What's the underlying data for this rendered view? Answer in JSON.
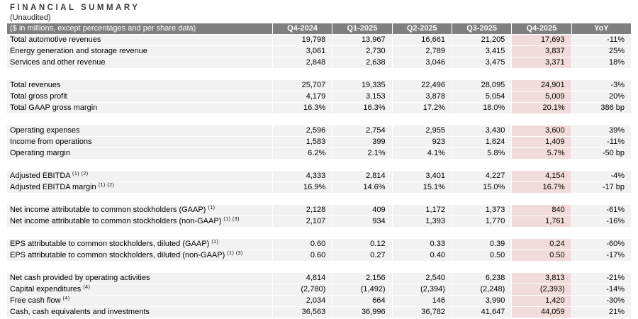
{
  "title": "FINANCIAL SUMMARY",
  "subtitle": "(Unaudited)",
  "colors": {
    "header_bg": "#7f7f7f",
    "header_text": "#ffffff",
    "row_bg": "#f2f2f2",
    "highlight_bg": "#f2dcdb",
    "spacer_bg": "#ffffff"
  },
  "table": {
    "label_note": "($ in millions, except percentages and per share data)",
    "columns": [
      "Q4-2024",
      "Q1-2025",
      "Q2-2025",
      "Q3-2025",
      "Q4-2025",
      "YoY"
    ],
    "highlight_column_index": 4,
    "highlight_column": "Q4-2025",
    "sections": [
      {
        "rows": [
          {
            "label": "Total automotive revenues",
            "sup": "",
            "values": [
              "19,798",
              "13,967",
              "16,661",
              "21,205",
              "17,693",
              "-11%"
            ]
          },
          {
            "label": "Energy generation and storage revenue",
            "sup": "",
            "values": [
              "3,061",
              "2,730",
              "2,789",
              "3,415",
              "3,837",
              "25%"
            ]
          },
          {
            "label": "Services and other revenue",
            "sup": "",
            "values": [
              "2,848",
              "2,638",
              "3,046",
              "3,475",
              "3,371",
              "18%"
            ]
          }
        ]
      },
      {
        "rows": [
          {
            "label": "Total revenues",
            "sup": "",
            "values": [
              "25,707",
              "19,335",
              "22,496",
              "28,095",
              "24,901",
              "-3%"
            ]
          },
          {
            "label": "Total gross profit",
            "sup": "",
            "values": [
              "4,179",
              "3,153",
              "3,878",
              "5,054",
              "5,009",
              "20%"
            ]
          },
          {
            "label": "Total GAAP gross margin",
            "sup": "",
            "values": [
              "16.3%",
              "16.3%",
              "17.2%",
              "18.0%",
              "20.1%",
              "386 bp"
            ]
          }
        ]
      },
      {
        "rows": [
          {
            "label": "Operating expenses",
            "sup": "",
            "values": [
              "2,596",
              "2,754",
              "2,955",
              "3,430",
              "3,600",
              "39%"
            ]
          },
          {
            "label": "Income from operations",
            "sup": "",
            "values": [
              "1,583",
              "399",
              "923",
              "1,624",
              "1,409",
              "-11%"
            ]
          },
          {
            "label": "Operating margin",
            "sup": "",
            "values": [
              "6.2%",
              "2.1%",
              "4.1%",
              "5.8%",
              "5.7%",
              "-50 bp"
            ]
          }
        ]
      },
      {
        "rows": [
          {
            "label": "Adjusted EBITDA ",
            "sup": "(1) (2)",
            "values": [
              "4,333",
              "2,814",
              "3,401",
              "4,227",
              "4,154",
              "-4%"
            ]
          },
          {
            "label": "Adjusted EBITDA margin ",
            "sup": "(1) (2)",
            "values": [
              "16.9%",
              "14.6%",
              "15.1%",
              "15.0%",
              "16.7%",
              "-17 bp"
            ]
          }
        ]
      },
      {
        "rows": [
          {
            "label": "Net income attributable to common stockholders (GAAP) ",
            "sup": "(1)",
            "values": [
              "2,128",
              "409",
              "1,172",
              "1,373",
              "840",
              "-61%"
            ]
          },
          {
            "label": "Net income attributable to common stockholders (non-GAAP) ",
            "sup": "(1) (3)",
            "values": [
              "2,107",
              "934",
              "1,393",
              "1,770",
              "1,761",
              "-16%"
            ]
          }
        ]
      },
      {
        "rows": [
          {
            "label": "EPS attributable to common stockholders, diluted (GAAP) ",
            "sup": "(1)",
            "values": [
              "0.60",
              "0.12",
              "0.33",
              "0.39",
              "0.24",
              "-60%"
            ]
          },
          {
            "label": "EPS attributable to common stockholders, diluted (non-GAAP) ",
            "sup": "(1) (3)",
            "values": [
              "0.60",
              "0.27",
              "0.40",
              "0.50",
              "0.50",
              "-17%"
            ]
          }
        ]
      },
      {
        "rows": [
          {
            "label": "Net cash provided by operating activities",
            "sup": "",
            "values": [
              "4,814",
              "2,156",
              "2,540",
              "6,238",
              "3,813",
              "-21%"
            ]
          },
          {
            "label": "Capital expenditures ",
            "sup": "(4)",
            "values": [
              "(2,780)",
              "(1,492)",
              "(2,394)",
              "(2,248)",
              "(2,393)",
              "-14%"
            ]
          },
          {
            "label": "Free cash flow ",
            "sup": "(4)",
            "values": [
              "2,034",
              "664",
              "146",
              "3,990",
              "1,420",
              "-30%"
            ]
          },
          {
            "label": "Cash, cash equivalents and investments",
            "sup": "",
            "values": [
              "36,563",
              "36,996",
              "36,782",
              "41,647",
              "44,059",
              "21%"
            ]
          }
        ]
      }
    ]
  }
}
